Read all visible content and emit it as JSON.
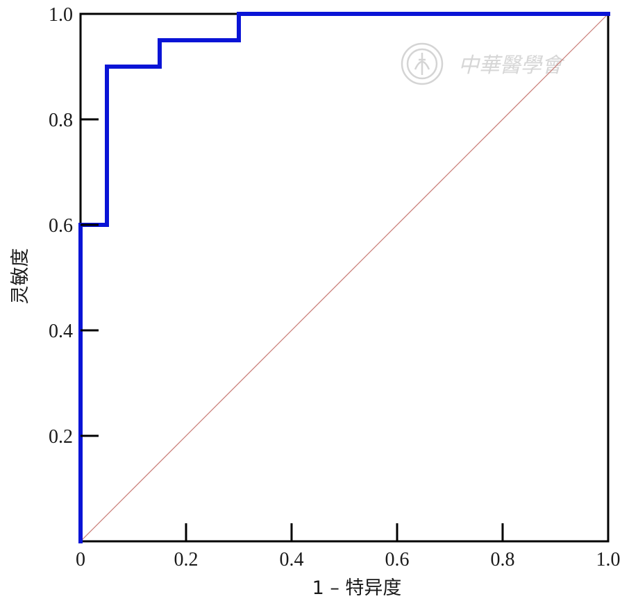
{
  "watermark": {
    "text": "中華醫學會",
    "color": "#d4d4d4"
  },
  "chart_data": {
    "type": "line",
    "title": "",
    "xlabel": "1 – 特异度",
    "ylabel": "灵敏度",
    "xlim": [
      0,
      1
    ],
    "ylim": [
      0,
      1
    ],
    "x_ticks": [
      {
        "value": 0,
        "label": "0"
      },
      {
        "value": 0.2,
        "label": "0.2"
      },
      {
        "value": 0.4,
        "label": "0.4"
      },
      {
        "value": 0.6,
        "label": "0.6"
      },
      {
        "value": 0.8,
        "label": "0.8"
      },
      {
        "value": 1.0,
        "label": "1.0"
      }
    ],
    "y_ticks": [
      {
        "value": 0.2,
        "label": "0.2"
      },
      {
        "value": 0.4,
        "label": "0.4"
      },
      {
        "value": 0.6,
        "label": "0.6"
      },
      {
        "value": 0.8,
        "label": "0.8"
      },
      {
        "value": 1.0,
        "label": "1.0"
      }
    ],
    "grid": false,
    "series": [
      {
        "role": "roc-curve",
        "color": "#0a14d6",
        "x": [
          0,
          0,
          0.05,
          0.05,
          0.15,
          0.15,
          0.3,
          0.3,
          1.0
        ],
        "y": [
          0,
          0.6,
          0.6,
          0.9,
          0.9,
          0.95,
          0.95,
          1.0,
          1.0
        ]
      },
      {
        "role": "reference-diagonal",
        "color": "#c87a74",
        "x": [
          0,
          1
        ],
        "y": [
          0,
          1
        ]
      }
    ]
  }
}
